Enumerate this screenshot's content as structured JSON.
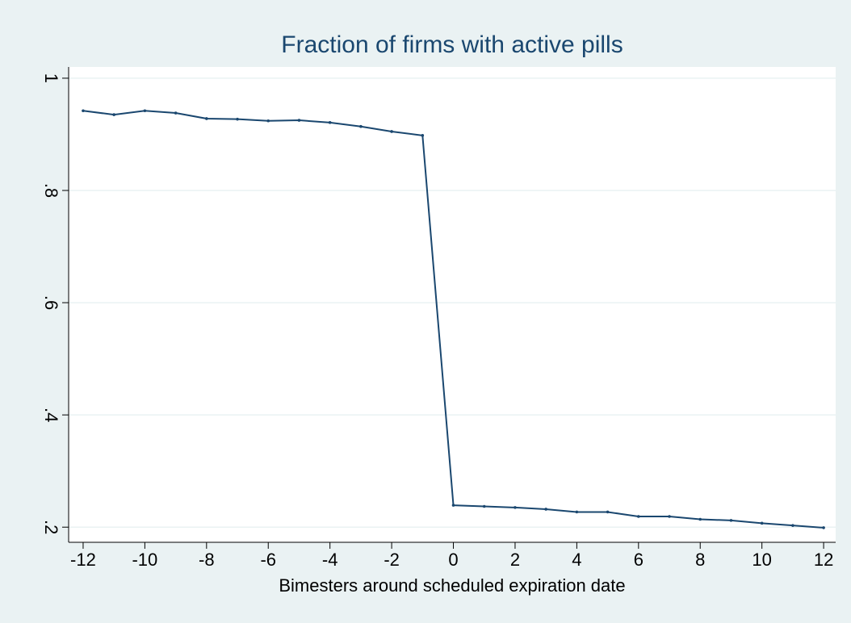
{
  "chart_data": {
    "type": "line",
    "title": "Fraction of firms with active pills",
    "xlabel": "Bimesters around scheduled expiration date",
    "x": [
      -12,
      -11,
      -10,
      -9,
      -8,
      -7,
      -6,
      -5,
      -4,
      -3,
      -2,
      -1,
      0,
      1,
      2,
      3,
      4,
      5,
      6,
      7,
      8,
      9,
      10,
      11,
      12
    ],
    "values": [
      0.942,
      0.935,
      0.942,
      0.938,
      0.928,
      0.927,
      0.924,
      0.925,
      0.921,
      0.914,
      0.905,
      0.898,
      0.239,
      0.237,
      0.235,
      0.232,
      0.227,
      0.227,
      0.219,
      0.219,
      0.214,
      0.212,
      0.207,
      0.203,
      0.199
    ],
    "color": "#1a476f",
    "xlim": [
      -12.47,
      12.39
    ],
    "xticks": [
      -12,
      -10,
      -8,
      -6,
      -4,
      -2,
      0,
      2,
      4,
      6,
      8,
      10,
      12
    ],
    "ylim": [
      0.173,
      1.02
    ],
    "yticks": [
      {
        "value": 0.2,
        "label": ".2"
      },
      {
        "value": 0.4,
        "label": ".4"
      },
      {
        "value": 0.6,
        "label": ".6"
      },
      {
        "value": 0.8,
        "label": ".8"
      },
      1
    ],
    "grid": true
  }
}
